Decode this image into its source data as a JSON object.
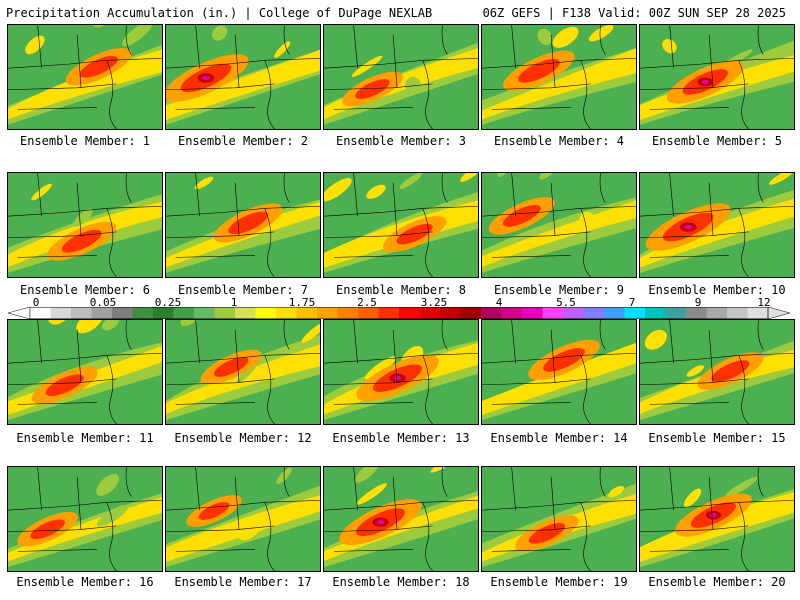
{
  "header": {
    "title": "Precipitation Accumulation (in.) | College of DuPage NEXLAB",
    "run_info": "06Z GEFS | F138 Valid: 00Z SUN SEP 28 2025"
  },
  "panels": [
    {
      "label": "Ensemble Member: 1",
      "intensity": 0.55
    },
    {
      "label": "Ensemble Member: 2",
      "intensity": 0.9
    },
    {
      "label": "Ensemble Member: 3",
      "intensity": 0.45
    },
    {
      "label": "Ensemble Member: 4",
      "intensity": 0.65
    },
    {
      "label": "Ensemble Member: 5",
      "intensity": 0.75
    },
    {
      "label": "Ensemble Member: 6",
      "intensity": 0.6
    },
    {
      "label": "Ensemble Member: 7",
      "intensity": 0.6
    },
    {
      "label": "Ensemble Member: 8",
      "intensity": 0.5
    },
    {
      "label": "Ensemble Member: 9",
      "intensity": 0.55
    },
    {
      "label": "Ensemble Member: 10",
      "intensity": 0.9
    },
    {
      "label": "Ensemble Member: 11",
      "intensity": 0.55
    },
    {
      "label": "Ensemble Member: 12",
      "intensity": 0.45
    },
    {
      "label": "Ensemble Member: 13",
      "intensity": 0.85
    },
    {
      "label": "Ensemble Member: 14",
      "intensity": 0.65
    },
    {
      "label": "Ensemble Member: 15",
      "intensity": 0.55
    },
    {
      "label": "Ensemble Member: 16",
      "intensity": 0.45
    },
    {
      "label": "Ensemble Member: 17",
      "intensity": 0.35
    },
    {
      "label": "Ensemble Member: 18",
      "intensity": 0.85
    },
    {
      "label": "Ensemble Member: 19",
      "intensity": 0.5
    },
    {
      "label": "Ensemble Member: 20",
      "intensity": 0.75
    }
  ],
  "colorbar": {
    "ticks": [
      "0",
      "0.05",
      "0.25",
      "1",
      "1.75",
      "2.5",
      "3.25",
      "4",
      "5.5",
      "7",
      "9",
      "12"
    ],
    "colors": [
      "#ffffff",
      "#d9d9d9",
      "#bdbdbd",
      "#a0a0a0",
      "#7f7f7f",
      "#3f8f3f",
      "#2e7d32",
      "#43a047",
      "#66bb6a",
      "#9ccc3d",
      "#d4e157",
      "#ffff00",
      "#ffe000",
      "#ffc000",
      "#ffa000",
      "#ff8000",
      "#ff6000",
      "#ff3000",
      "#ff0000",
      "#e00000",
      "#c00000",
      "#a00000",
      "#b00060",
      "#d0008a",
      "#e600b8",
      "#ff40ff",
      "#c060ff",
      "#8080ff",
      "#40a0ff",
      "#00e0ff",
      "#00c0c0",
      "#40a0a0",
      "#8c8c8c",
      "#a8a8a8",
      "#c4c4c4",
      "#e0e0e0"
    ]
  }
}
